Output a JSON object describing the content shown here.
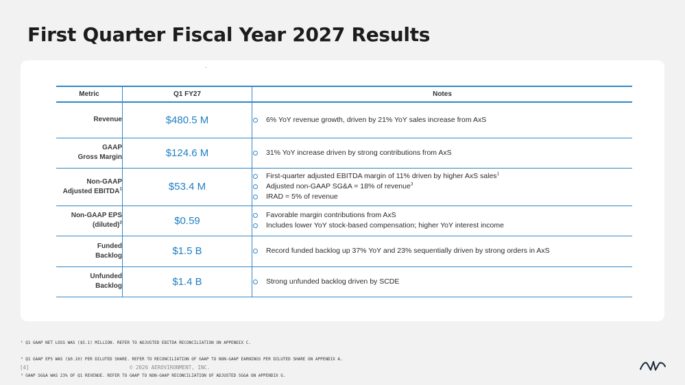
{
  "title": "First Quarter Fiscal Year 2027 Results",
  "table": {
    "headers": [
      "Metric",
      "Q1 FY27",
      "Notes"
    ],
    "rows": [
      {
        "metric": [
          "Revenue"
        ],
        "sup": "",
        "value": "$480.5 M",
        "notes": [
          {
            "text": "6% YoY revenue growth, driven by 21% YoY sales increase from AxS",
            "sup": ""
          }
        ]
      },
      {
        "metric": [
          "GAAP",
          "Gross Margin"
        ],
        "sup": "",
        "value": "$124.6 M",
        "notes": [
          {
            "text": "31% YoY increase driven by strong contributions from AxS",
            "sup": ""
          }
        ]
      },
      {
        "metric": [
          "Non-GAAP",
          "Adjusted EBITDA"
        ],
        "sup": "1",
        "value": "$53.4 M",
        "notes": [
          {
            "text": "First-quarter adjusted EBITDA margin of 11% driven by higher AxS sales",
            "sup": "1"
          },
          {
            "text": "Adjusted non-GAAP SG&A = 18% of revenue",
            "sup": "3"
          },
          {
            "text": "IRAD = 5% of revenue",
            "sup": ""
          }
        ]
      },
      {
        "metric": [
          "Non-GAAP EPS",
          "(diluted)"
        ],
        "sup": "2",
        "value": "$0.59",
        "notes": [
          {
            "text": "Favorable margin contributions from AxS",
            "sup": ""
          },
          {
            "text": "Includes lower YoY stock-based compensation; higher YoY interest income",
            "sup": ""
          }
        ]
      },
      {
        "metric": [
          "Funded",
          "Backlog"
        ],
        "sup": "",
        "value": "$1.5 B",
        "notes": [
          {
            "text": "Record funded backlog up 37% YoY and 23% sequentially driven by strong orders in AxS",
            "sup": ""
          }
        ]
      },
      {
        "metric": [
          "Unfunded",
          "Backlog"
        ],
        "sup": "",
        "value": "$1.4 B",
        "notes": [
          {
            "text": "Strong unfunded backlog driven by SCDE",
            "sup": ""
          }
        ]
      }
    ]
  },
  "footnotes": [
    "¹ Q1 GAAP NET LOSS WAS ($5.1) MILLION. REFER TO ADJUSTED EBITDA RECONCILIATION ON APPENDIX C.",
    "² Q1 GAAP EPS WAS ($0.10) PER DILUTED SHARE. REFER TO RECONCILIATION OF GAAP TO NON-GAAP EARNINGS PER DILUTED SHARE ON APPENDIX A.",
    "³ GAAP SG&A WAS 23% OF Q1 REVENUE. REFER TO GAAP TO NON-GAAP RECONCILIATION OF ADJUSTED SG&A ON APPENDIX G."
  ],
  "footer": {
    "page": "[4]",
    "copyright": "© 2026 AEROVIRONMENT, INC."
  },
  "logo": {
    "icon": "av-logo-icon",
    "color": "#1c2a3a"
  },
  "colors": {
    "accent": "#2f86c6",
    "value": "#1f7fc4",
    "background": "#f2f2f2"
  }
}
